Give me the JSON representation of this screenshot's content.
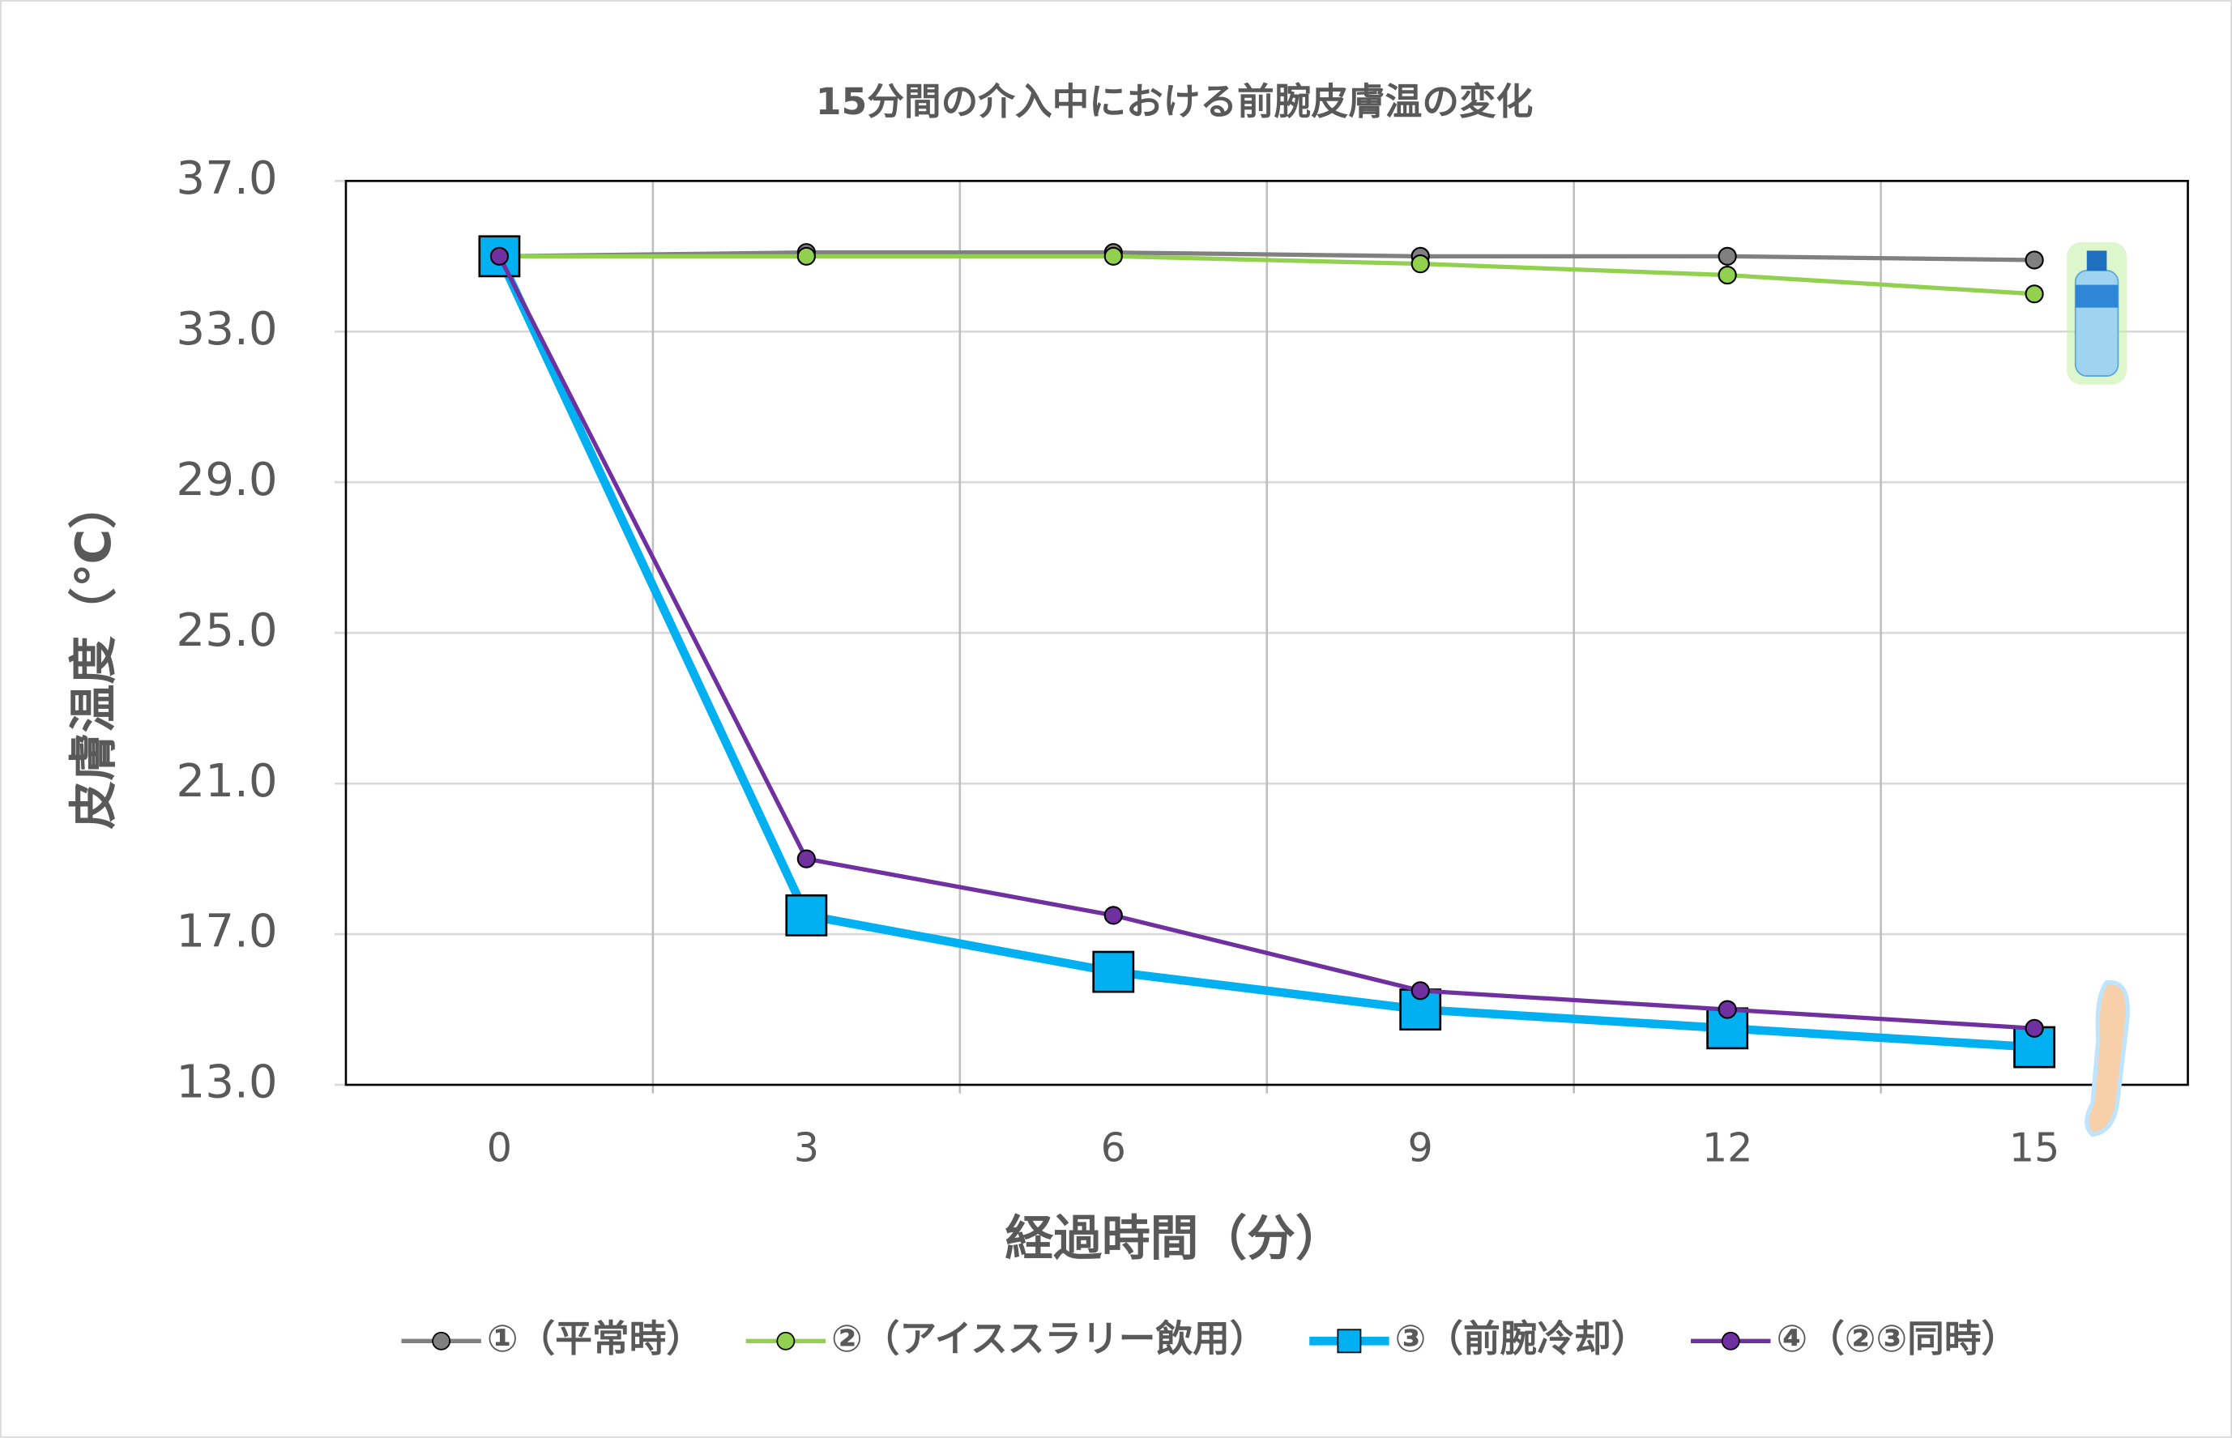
{
  "chart_data": {
    "type": "line",
    "title": "15分間の介入中における前腕皮膚温の変化",
    "x_label": "経過時間（分）",
    "y_label": "皮膚温度（℃）",
    "categories": [
      "0",
      "3",
      "6",
      "9",
      "12",
      "15"
    ],
    "ylim": [
      13,
      37
    ],
    "yticks": [
      {
        "value": 13,
        "label": "13.0"
      },
      {
        "value": 17,
        "label": "17.0"
      },
      {
        "value": 21,
        "label": "21.0"
      },
      {
        "value": 25,
        "label": "25.0"
      },
      {
        "value": 29,
        "label": "29.0"
      },
      {
        "value": 33,
        "label": "33.0"
      },
      {
        "value": 37,
        "label": "37.0"
      }
    ],
    "grid": true,
    "series": [
      {
        "name": "①（平常時）",
        "color": "#808080",
        "marker": "circle",
        "width": 3,
        "values": [
          35.0,
          35.1,
          35.1,
          35.0,
          35.0,
          34.9
        ]
      },
      {
        "name": "②（アイススラリー飲用）",
        "color": "#92d050",
        "marker": "circle",
        "width": 3,
        "values": [
          35.0,
          35.0,
          35.0,
          34.8,
          34.5,
          34.0
        ]
      },
      {
        "name": "③（前腕冷却）",
        "color": "#00b0f0",
        "marker": "square",
        "width": 6,
        "values": [
          35.0,
          17.5,
          16.0,
          15.0,
          14.5,
          14.0
        ]
      },
      {
        "name": "④（②③同時）",
        "color": "#7030a0",
        "marker": "circle",
        "width": 3,
        "values": [
          35.0,
          19.0,
          17.5,
          15.5,
          15.0,
          14.5
        ]
      }
    ]
  }
}
